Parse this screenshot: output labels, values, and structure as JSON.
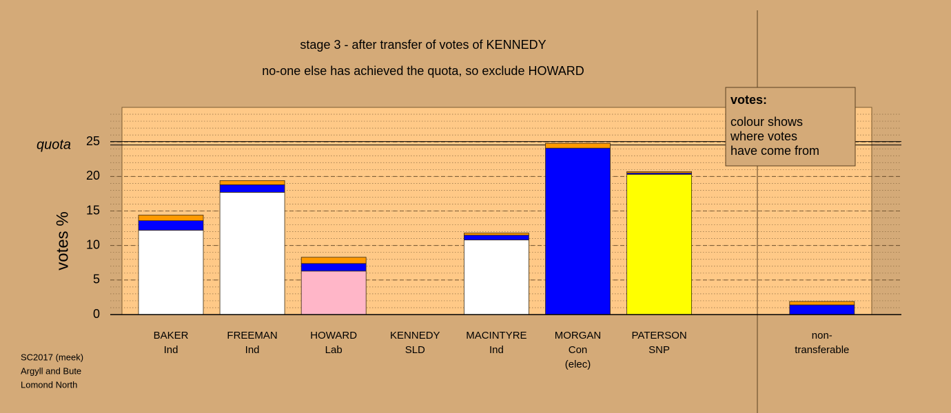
{
  "chart_data": {
    "type": "bar",
    "stacked": true,
    "title": "stage 3 - after transfer of votes of KENNEDY",
    "subtitle": "no-one else has achieved the quota, so exclude HOWARD",
    "y_label": "votes %",
    "quota_label": "quota",
    "quota": 24.8,
    "categories": [
      [
        "BAKER",
        "Ind"
      ],
      [
        "FREEMAN",
        "Ind"
      ],
      [
        "HOWARD",
        "Lab"
      ],
      [
        "KENNEDY",
        "SLD"
      ],
      [
        "MACINTYRE",
        "Ind"
      ],
      [
        "MORGAN",
        "Con",
        "(elec)"
      ],
      [
        "PATERSON",
        "SNP"
      ],
      null,
      [
        "non-",
        "transferable"
      ]
    ],
    "series": [
      {
        "colors": [
          "#ffffff",
          "#ffffff",
          "#ffb6c8",
          "#ff9900",
          "#ffffff",
          "#0000ff",
          "#ffff00",
          null,
          "#c0c0c0"
        ],
        "values": [
          12.2,
          17.7,
          6.3,
          0,
          10.8,
          24.1,
          20.3,
          null,
          0
        ]
      },
      {
        "color": "#0000ff",
        "values": [
          1.4,
          1.1,
          1.1,
          0,
          0.7,
          0,
          0.2,
          null,
          1.4
        ]
      },
      {
        "color": "#ff9900",
        "values": [
          0.8,
          0.6,
          0.9,
          0,
          0.3,
          0.7,
          0.2,
          null,
          0.5
        ]
      }
    ],
    "ylim": [
      0,
      30
    ],
    "yticks": [
      0,
      5,
      10,
      15,
      20,
      25
    ],
    "grid": true,
    "minor_grid_step": 1,
    "note": {
      "title": "votes:",
      "lines": [
        "colour shows",
        "where votes",
        "have come from"
      ]
    },
    "footer": [
      "SC2017 (meek)",
      "Argyll and Bute",
      "Lomond North"
    ]
  }
}
